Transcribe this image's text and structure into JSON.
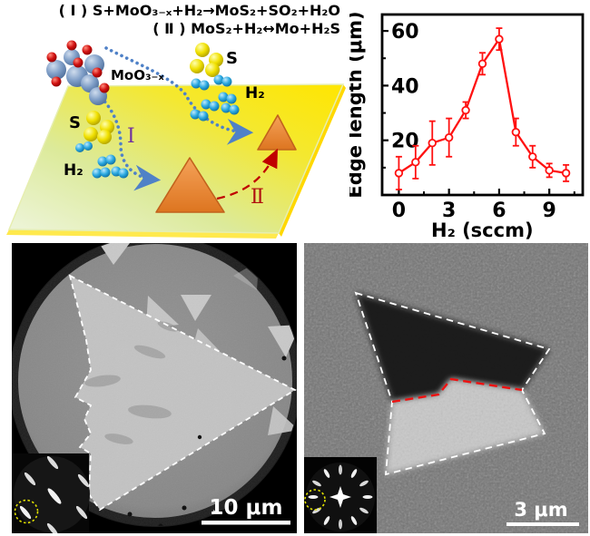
{
  "figure": {
    "schematic": {
      "reaction1": "( Ⅰ ) S+MoO₃₋ₓ+H₂→MoS₂+SO₂+H₂O",
      "reaction2": "( Ⅱ ) MoS₂+H₂↔Mo+H₂S",
      "label_moo3x": "MoO₃₋ₓ",
      "label_s_top": "S",
      "label_h2_top": "H₂",
      "label_s_left": "S",
      "label_h2_left": "H₂",
      "label_step1": "Ⅰ",
      "label_step2": "Ⅱ",
      "colors": {
        "substrate_pale": "#f2f7dc",
        "substrate_yellow": "#ffe600",
        "triangle_orange": "#e8873b",
        "triangle_edge": "#c2621c",
        "path_I_blue": "#4f81c7",
        "path_II_red": "#c00000",
        "step1_purple": "#7030a0",
        "step2_red": "#b01010",
        "sphere_mo_blue": "#7f9ec7",
        "sphere_o_red": "#d01010",
        "sphere_s_yellow": "#f0e000",
        "sphere_h_cyan": "#2aa8e0"
      }
    },
    "micrograph_left": {
      "scale_bar_label": "10 μm",
      "outline_color": "#ffffff",
      "inset_circle_color": "#e0e000"
    },
    "micrograph_right": {
      "scale_bar_label": "3 μm",
      "outline_color": "#ffffff",
      "boundary_color": "#ee1111",
      "inset_circle_color": "#e0e000"
    }
  },
  "chart_data": {
    "type": "line",
    "title": "",
    "xlabel": "H₂ (sccm)",
    "ylabel": "Edge length (μm)",
    "x": [
      0,
      1,
      2,
      3,
      4,
      5,
      6,
      7,
      8,
      9,
      10
    ],
    "series": [
      {
        "name": "Edge length",
        "values": [
          8,
          12,
          19,
          21,
          31,
          48,
          57,
          23,
          14,
          9,
          8
        ],
        "errors": [
          6,
          6,
          8,
          7,
          3,
          4,
          4,
          5,
          4,
          2.5,
          3
        ]
      }
    ],
    "xticks": [
      0,
      3,
      6,
      9
    ],
    "yticks": [
      20,
      40,
      60
    ],
    "x_minor_ticks": [
      1.5,
      4.5,
      7.5,
      10.5
    ],
    "y_minor_ticks": [
      10,
      30,
      50
    ],
    "xlim": [
      -1,
      11
    ],
    "ylim": [
      0,
      66
    ],
    "grid": false,
    "legend": null,
    "line_color": "#ff1111",
    "marker": "open-circle",
    "frame_color": "#000000"
  }
}
